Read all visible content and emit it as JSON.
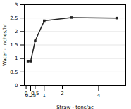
{
  "chart_data": {
    "type": "line",
    "xlabel": "Straw - tons/ac",
    "ylabel": "Water - inches/hr",
    "x": [
      0.1,
      0.25,
      0.5,
      1.0,
      2.5,
      5.0
    ],
    "values": [
      0.9,
      0.9,
      1.65,
      2.4,
      2.52,
      2.5
    ],
    "color": "#222222",
    "marker": "square",
    "line_style": "solid",
    "xlim": [
      -0.1,
      5.5
    ],
    "ylim": [
      0,
      3.0
    ],
    "xticks": [
      0,
      0.25,
      0.5,
      1,
      2,
      4
    ],
    "yticks": [
      0,
      0.5,
      1,
      1.5,
      2,
      2.5,
      3
    ],
    "grid": "y"
  }
}
